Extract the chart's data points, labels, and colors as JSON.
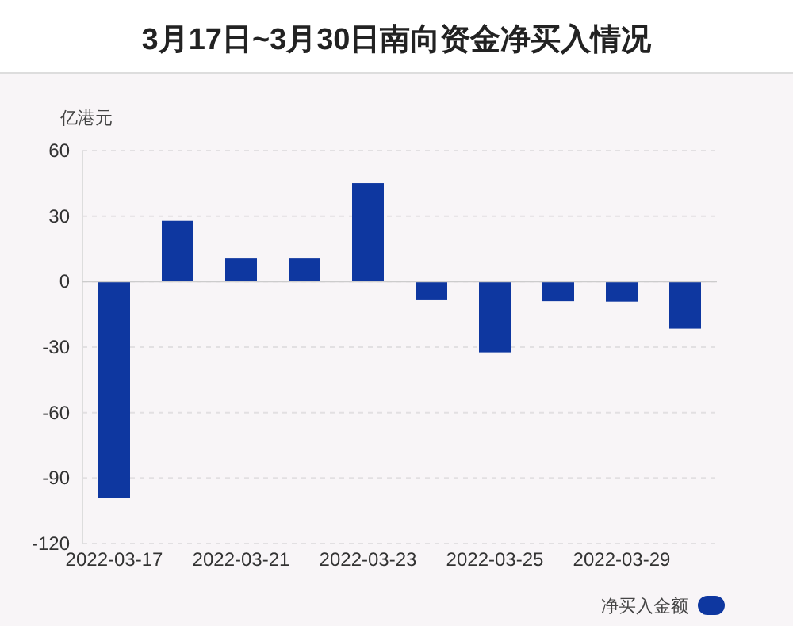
{
  "chart_data": {
    "type": "bar",
    "title": "3月17日~3月30日南向资金净买入情况",
    "ylabel": "亿港元",
    "categories": [
      "2022-03-17",
      null,
      "2022-03-21",
      null,
      "2022-03-23",
      null,
      "2022-03-25",
      null,
      "2022-03-29",
      null
    ],
    "series": [
      {
        "name": "净买入金额",
        "color": "#0e37a0",
        "values": [
          -99,
          27.8,
          10.6,
          10.6,
          45.1,
          -8.2,
          -32.4,
          -9,
          -9.2,
          -21.5
        ]
      }
    ],
    "ylim": [
      -120,
      60
    ],
    "yticks": [
      -120,
      -90,
      -60,
      -30,
      0,
      30,
      60
    ],
    "grid": "y",
    "legend": "bottom right"
  }
}
